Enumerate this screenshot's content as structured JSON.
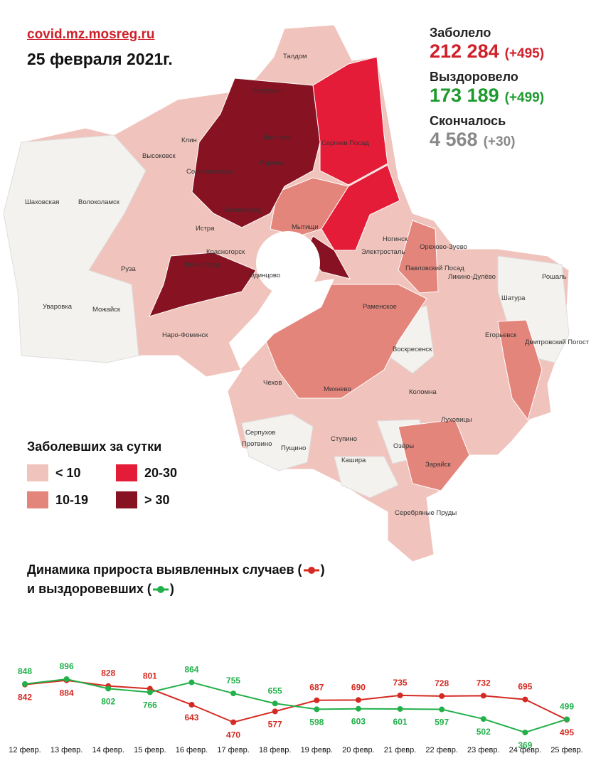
{
  "header": {
    "site": "covid.mz.mosreg.ru",
    "date": "25 февраля 2021г."
  },
  "stats": [
    {
      "label": "Заболело",
      "value": "212 284",
      "delta": "(+495)",
      "color": "#d0202a"
    },
    {
      "label": "Выздоровело",
      "value": "173 189",
      "delta": "(+499)",
      "color": "#1e9a2e"
    },
    {
      "label": "Скончалось",
      "value": "4 568",
      "delta": "(+30)",
      "color": "#888888"
    }
  ],
  "legend": {
    "title": "Заболевших за сутки",
    "items": [
      {
        "label": "< 10",
        "color": "#f0c4bc"
      },
      {
        "label": "10-19",
        "color": "#e4857b"
      },
      {
        "label": "20-30",
        "color": "#e41c38"
      },
      {
        "label": "> 30",
        "color": "#861222"
      }
    ]
  },
  "map": {
    "towns": [
      "Талдом",
      "Запрудня",
      "Дмитров",
      "Сергиев Посад",
      "Клин",
      "Высоковск",
      "Яхрома",
      "Солнечногорск",
      "Шаховская",
      "Волоколамск",
      "Зеленоград",
      "Истра",
      "Мытищи",
      "Ногинск",
      "Электросталь",
      "Орехово-Зуево",
      "Красногорск",
      "Павловский Посад",
      "Руза",
      "Звенигород",
      "Одинцово",
      "Ликино-Дулёво",
      "Рошаль",
      "Шатура",
      "Уваровка",
      "Можайск",
      "Раменское",
      "Наро-Фоминск",
      "Егорьевск",
      "Дмитровский Погост",
      "Воскресенск",
      "Чехов",
      "Михнево",
      "Коломна",
      "Луховицы",
      "Серпухов",
      "Протвино",
      "Пущино",
      "Ступино",
      "Озёры",
      "Зарайск",
      "Кашира",
      "Серебряные Пруды"
    ]
  },
  "chart_data": {
    "type": "line",
    "legend_close": ")",
    "categories": [
      "12 февр.",
      "13 февр.",
      "14 февр.",
      "15 февр.",
      "16 февр.",
      "17 февр.",
      "18 февр.",
      "19 февр.",
      "20 февр.",
      "21 февр.",
      "22 февр.",
      "23 февр.",
      "24 февр.",
      "25 февр."
    ],
    "series": [
      {
        "name": "Динамика прироста выявленных случаев (",
        "color": "#d42a22",
        "values": [
          842,
          884,
          828,
          801,
          643,
          470,
          577,
          687,
          690,
          735,
          728,
          732,
          695,
          495
        ]
      },
      {
        "name": "и выздоровевших (",
        "color": "#22b04a",
        "values": [
          848,
          896,
          802,
          766,
          864,
          755,
          655,
          598,
          603,
          601,
          597,
          502,
          369,
          499
        ]
      }
    ]
  }
}
